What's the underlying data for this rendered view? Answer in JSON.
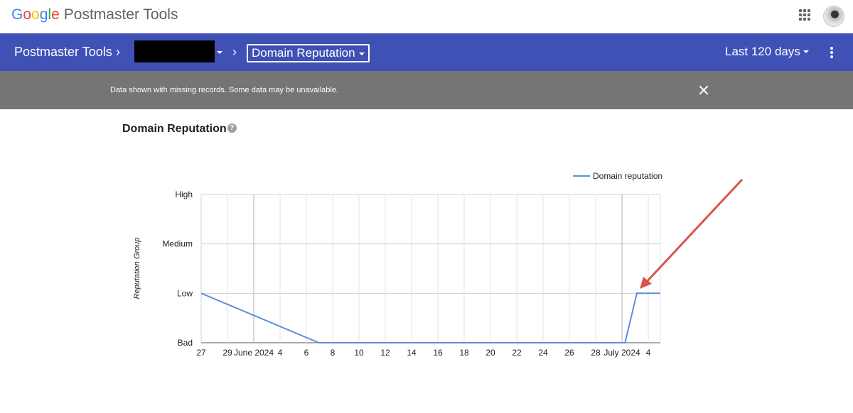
{
  "header": {
    "logo": [
      "G",
      "o",
      "o",
      "g",
      "l",
      "e"
    ],
    "product": "Postmaster Tools"
  },
  "nav": {
    "title": "Postmaster Tools",
    "report": "Domain Reputation",
    "range": "Last 120 days"
  },
  "notice": {
    "text": "Data shown with missing records. Some data may be unavailable."
  },
  "section": {
    "title": "Domain Reputation"
  },
  "colors": {
    "nav": "#3f51b5",
    "notice": "#757575",
    "series": "#5b8fd9",
    "annotation_arrow": "#d9534f"
  },
  "icons": {
    "apps": "apps-grid-icon",
    "more": "more-vert-icon",
    "close": "close-icon",
    "help": "help-icon"
  },
  "chart_data": {
    "type": "line",
    "ylabel": "Reputation Group",
    "y_categories": [
      "Bad",
      "Low",
      "Medium",
      "High"
    ],
    "x_ticks": [
      "27",
      "29",
      "June 2024",
      "4",
      "6",
      "8",
      "10",
      "12",
      "14",
      "16",
      "18",
      "20",
      "22",
      "24",
      "26",
      "28",
      "July 2024",
      "4"
    ],
    "x_range": [
      "2024-05-27",
      "2024-07-05"
    ],
    "legend": {
      "position": "top-right",
      "entries": [
        "Domain reputation"
      ]
    },
    "series": [
      {
        "name": "Domain reputation",
        "points": [
          {
            "x": "2024-05-27",
            "y": "Low"
          },
          {
            "x": "2024-06-06",
            "y": "Bad"
          },
          {
            "x": "2024-07-02",
            "y": "Bad"
          },
          {
            "x": "2024-07-03",
            "y": "Low"
          },
          {
            "x": "2024-07-05",
            "y": "Low"
          }
        ]
      }
    ],
    "grid": true
  }
}
